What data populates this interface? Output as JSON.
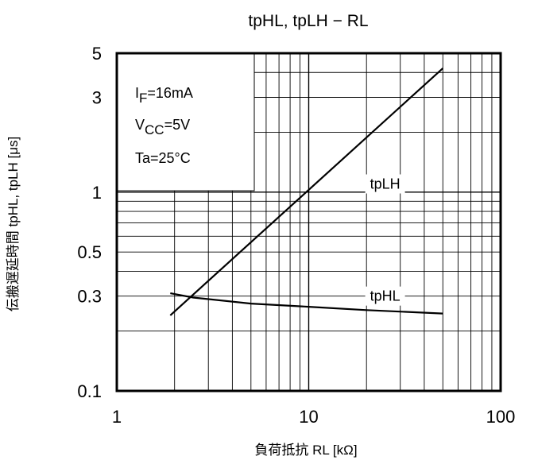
{
  "chart_data": {
    "type": "line",
    "title": "tpHL, tpLH − RL",
    "xlabel": "負荷抵抗 RL [kΩ]",
    "ylabel": "伝搬遅延時間 tpHL, tpLH [μs]",
    "x_scale": "log",
    "y_scale": "log",
    "xlim": [
      1,
      100
    ],
    "ylim": [
      0.1,
      5
    ],
    "x_ticks": [
      {
        "value": 1,
        "label": "1"
      },
      {
        "value": 10,
        "label": "10"
      },
      {
        "value": 100,
        "label": "100"
      }
    ],
    "y_ticks": [
      {
        "value": 0.1,
        "label": "0.1"
      },
      {
        "value": 0.3,
        "label": "0.3"
      },
      {
        "value": 0.5,
        "label": "0.5"
      },
      {
        "value": 1,
        "label": "1"
      },
      {
        "value": 3,
        "label": "3"
      },
      {
        "value": 5,
        "label": "5"
      }
    ],
    "grid": true,
    "conditions": {
      "if_prefix": "I",
      "if_sub": "F",
      "if_value": "=16mA",
      "vcc_prefix": "V",
      "vcc_sub": "CC",
      "vcc_value": "=5V",
      "ta": "Ta=25°C"
    },
    "series": [
      {
        "name": "tpLH",
        "x": [
          1.9,
          50
        ],
        "y": [
          0.24,
          4.2
        ]
      },
      {
        "name": "tpHL",
        "x": [
          1.9,
          2.5,
          5,
          10,
          20,
          50
        ],
        "y": [
          0.31,
          0.295,
          0.275,
          0.265,
          0.255,
          0.245
        ]
      }
    ]
  }
}
